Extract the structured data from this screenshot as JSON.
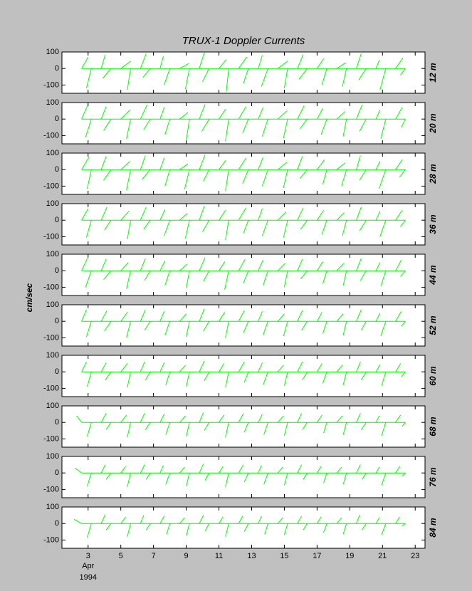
{
  "chart_data": [
    {
      "type": "stick",
      "title": "TRUX-1  Doppler Currents",
      "label": "12 m",
      "color": "#00ff00",
      "xlim": [
        1.4,
        23.6
      ],
      "ylim": [
        -150,
        100
      ],
      "yticks": [
        -100,
        0,
        100
      ],
      "xticks": [
        3,
        5,
        7,
        9,
        11,
        13,
        15,
        17,
        19,
        21,
        23
      ],
      "x": [
        2.6,
        3.2,
        3.8,
        4.4,
        5,
        5.6,
        6.2,
        6.8,
        7.4,
        8,
        8.6,
        9.2,
        9.8,
        10.4,
        11,
        11.6,
        12.2,
        12.8,
        13.4,
        14,
        14.6,
        15.2,
        15.8,
        16.4,
        17,
        17.6,
        18.2,
        18.8,
        19.4,
        20,
        20.6,
        21.2,
        21.8,
        22.4
      ],
      "u": [
        40,
        -30,
        25,
        -50,
        60,
        -20,
        35,
        -45,
        20,
        -35,
        55,
        -25,
        30,
        -40,
        45,
        -15,
        50,
        -30,
        25,
        -40,
        60,
        -20,
        35,
        -50,
        40,
        -30,
        55,
        -25,
        30,
        -45,
        20,
        -35,
        45,
        -30
      ],
      "v": [
        70,
        -120,
        85,
        -60,
        45,
        -130,
        90,
        -55,
        75,
        -100,
        30,
        -125,
        95,
        -80,
        55,
        -140,
        70,
        -90,
        80,
        -110,
        45,
        -120,
        85,
        -65,
        60,
        -100,
        35,
        -110,
        90,
        -70,
        50,
        -130,
        65,
        -40
      ]
    },
    {
      "type": "stick",
      "label": "20 m",
      "color": "#00ff00",
      "xlim": [
        1.4,
        23.6
      ],
      "ylim": [
        -150,
        100
      ],
      "yticks": [
        -100,
        0,
        100
      ],
      "xticks": [
        3,
        5,
        7,
        9,
        11,
        13,
        15,
        17,
        19,
        21,
        23
      ],
      "x": [
        2.6,
        3.2,
        3.8,
        4.4,
        5,
        5.6,
        6.2,
        6.8,
        7.4,
        8,
        8.6,
        9.2,
        9.8,
        10.4,
        11,
        11.6,
        12.2,
        12.8,
        13.4,
        14,
        14.6,
        15.2,
        15.8,
        16.4,
        17,
        17.6,
        18.2,
        18.8,
        19.4,
        20,
        20.6,
        21.2,
        21.8,
        22.4
      ],
      "u": [
        35,
        -35,
        30,
        -45,
        55,
        -25,
        40,
        -40,
        25,
        -30,
        50,
        -20,
        35,
        -45,
        40,
        -20,
        45,
        -35,
        30,
        -35,
        55,
        -25,
        40,
        -45,
        35,
        -35,
        50,
        -20,
        35,
        -40,
        25,
        -30,
        40,
        -25
      ],
      "v": [
        80,
        -110,
        75,
        -70,
        55,
        -120,
        85,
        -65,
        70,
        -95,
        40,
        -130,
        90,
        -75,
        60,
        -135,
        75,
        -85,
        70,
        -105,
        50,
        -115,
        80,
        -60,
        65,
        -95,
        45,
        -105,
        85,
        -75,
        55,
        -120,
        70,
        -50
      ]
    },
    {
      "type": "stick",
      "label": "28 m",
      "color": "#00ff00",
      "xlim": [
        1.4,
        23.6
      ],
      "ylim": [
        -150,
        100
      ],
      "yticks": [
        -100,
        0,
        100
      ],
      "xticks": [
        3,
        5,
        7,
        9,
        11,
        13,
        15,
        17,
        19,
        21,
        23
      ],
      "x": [
        2.6,
        3.2,
        3.8,
        4.4,
        5,
        5.6,
        6.2,
        6.8,
        7.4,
        8,
        8.6,
        9.2,
        9.8,
        10.4,
        11,
        11.6,
        12.2,
        12.8,
        13.4,
        14,
        14.6,
        15.2,
        15.8,
        16.4,
        17,
        17.6,
        18.2,
        18.8,
        19.4,
        20,
        20.6,
        21.2,
        21.8,
        22.4
      ],
      "u": [
        45,
        -25,
        30,
        -45,
        55,
        -25,
        30,
        -50,
        25,
        -30,
        50,
        -30,
        35,
        -35,
        40,
        -20,
        45,
        -35,
        30,
        -35,
        55,
        -25,
        30,
        -45,
        45,
        -25,
        50,
        -30,
        25,
        -40,
        25,
        -40,
        40,
        -35
      ],
      "v": [
        75,
        -115,
        80,
        -65,
        50,
        -125,
        85,
        -60,
        70,
        -100,
        35,
        -120,
        90,
        -70,
        55,
        -130,
        70,
        -85,
        75,
        -100,
        45,
        -110,
        80,
        -55,
        60,
        -90,
        40,
        -100,
        85,
        -65,
        50,
        -115,
        60,
        -45
      ]
    },
    {
      "type": "stick",
      "label": "36 m",
      "color": "#00ff00",
      "xlim": [
        1.4,
        23.6
      ],
      "ylim": [
        -150,
        100
      ],
      "yticks": [
        -100,
        0,
        100
      ],
      "xticks": [
        3,
        5,
        7,
        9,
        11,
        13,
        15,
        17,
        19,
        21,
        23
      ],
      "x": [
        2.6,
        3.2,
        3.8,
        4.4,
        5,
        5.6,
        6.2,
        6.8,
        7.4,
        8,
        8.6,
        9.2,
        9.8,
        10.4,
        11,
        11.6,
        12.2,
        12.8,
        13.4,
        14,
        14.6,
        15.2,
        15.8,
        16.4,
        17,
        17.6,
        18.2,
        18.8,
        19.4,
        20,
        20.6,
        21.2,
        21.8,
        22.4
      ],
      "u": [
        40,
        -30,
        35,
        -40,
        50,
        -20,
        35,
        -40,
        30,
        -35,
        45,
        -25,
        30,
        -40,
        40,
        -20,
        45,
        -30,
        25,
        -35,
        50,
        -25,
        35,
        -40,
        40,
        -30,
        45,
        -25,
        30,
        -40,
        25,
        -35,
        40,
        -30
      ],
      "v": [
        70,
        -105,
        80,
        -60,
        55,
        -115,
        80,
        -55,
        65,
        -95,
        40,
        -110,
        85,
        -70,
        60,
        -120,
        75,
        -80,
        70,
        -95,
        50,
        -105,
        75,
        -55,
        60,
        -85,
        45,
        -95,
        80,
        -65,
        55,
        -100,
        60,
        -40
      ]
    },
    {
      "type": "stick",
      "label": "44 m",
      "color": "#00ff00",
      "xlim": [
        1.4,
        23.6
      ],
      "ylim": [
        -150,
        100
      ],
      "yticks": [
        -100,
        0,
        100
      ],
      "xticks": [
        3,
        5,
        7,
        9,
        11,
        13,
        15,
        17,
        19,
        21,
        23
      ],
      "x": [
        2.6,
        3.2,
        3.8,
        4.4,
        5,
        5.6,
        6.2,
        6.8,
        7.4,
        8,
        8.6,
        9.2,
        9.8,
        10.4,
        11,
        11.6,
        12.2,
        12.8,
        13.4,
        14,
        14.6,
        15.2,
        15.8,
        16.4,
        17,
        17.6,
        18.2,
        18.8,
        19.4,
        20,
        20.6,
        21.2,
        21.8,
        22.4
      ],
      "u": [
        35,
        -35,
        30,
        -45,
        45,
        -25,
        30,
        -35,
        30,
        -30,
        45,
        -20,
        35,
        -35,
        35,
        -25,
        40,
        -30,
        30,
        -30,
        45,
        -20,
        30,
        -40,
        35,
        -25,
        45,
        -20,
        30,
        -35,
        25,
        -30,
        35,
        -30
      ],
      "v": [
        75,
        -100,
        70,
        -55,
        50,
        -110,
        75,
        -60,
        60,
        -90,
        40,
        -105,
        80,
        -65,
        55,
        -115,
        70,
        -75,
        65,
        -90,
        45,
        -100,
        70,
        -50,
        55,
        -80,
        45,
        -90,
        75,
        -60,
        50,
        -95,
        65,
        -35
      ]
    },
    {
      "type": "stick",
      "label": "52 m",
      "ylabel": "cm/sec",
      "color": "#00ff00",
      "xlim": [
        1.4,
        23.6
      ],
      "ylim": [
        -150,
        100
      ],
      "yticks": [
        -100,
        0,
        100
      ],
      "xticks": [
        3,
        5,
        7,
        9,
        11,
        13,
        15,
        17,
        19,
        21,
        23
      ],
      "x": [
        2.6,
        3.2,
        3.8,
        4.4,
        5,
        5.6,
        6.2,
        6.8,
        7.4,
        8,
        8.6,
        9.2,
        9.8,
        10.4,
        11,
        11.6,
        12.2,
        12.8,
        13.4,
        14,
        14.6,
        15.2,
        15.8,
        16.4,
        17,
        17.6,
        18.2,
        18.8,
        19.4,
        20,
        20.6,
        21.2,
        21.8,
        22.4
      ],
      "u": [
        30,
        -30,
        35,
        -40,
        40,
        -25,
        30,
        -35,
        25,
        -30,
        40,
        -20,
        30,
        -35,
        35,
        -20,
        35,
        -30,
        25,
        -30,
        40,
        -25,
        30,
        -35,
        30,
        -25,
        40,
        -20,
        30,
        -30,
        25,
        -30,
        35,
        -25
      ],
      "v": [
        70,
        -95,
        65,
        -60,
        55,
        -100,
        70,
        -55,
        60,
        -85,
        45,
        -95,
        75,
        -60,
        55,
        -100,
        65,
        -70,
        60,
        -85,
        45,
        -90,
        65,
        -55,
        55,
        -75,
        45,
        -85,
        70,
        -55,
        50,
        -90,
        60,
        -30
      ]
    },
    {
      "type": "stick",
      "label": "60 m",
      "color": "#00ff00",
      "xlim": [
        1.4,
        23.6
      ],
      "ylim": [
        -150,
        100
      ],
      "yticks": [
        -100,
        0,
        100
      ],
      "xticks": [
        3,
        5,
        7,
        9,
        11,
        13,
        15,
        17,
        19,
        21,
        23
      ],
      "x": [
        2.6,
        3.2,
        3.8,
        4.4,
        5,
        5.6,
        6.2,
        6.8,
        7.4,
        8,
        8.6,
        9.2,
        9.8,
        10.4,
        11,
        11.6,
        12.2,
        12.8,
        13.4,
        14,
        14.6,
        15.2,
        15.8,
        16.4,
        17,
        17.6,
        18.2,
        18.8,
        19.4,
        20,
        20.6,
        21.2,
        21.8,
        22.4
      ],
      "u": [
        30,
        -25,
        30,
        -35,
        40,
        -20,
        25,
        -30,
        25,
        -25,
        35,
        -20,
        30,
        -30,
        30,
        -20,
        35,
        -25,
        25,
        -30,
        35,
        -20,
        30,
        -30,
        30,
        -25,
        35,
        -20,
        25,
        -30,
        25,
        -25,
        30,
        -25
      ],
      "v": [
        60,
        -90,
        55,
        -50,
        50,
        -95,
        60,
        -50,
        55,
        -80,
        40,
        -90,
        65,
        -55,
        50,
        -95,
        60,
        -65,
        55,
        -80,
        40,
        -85,
        60,
        -50,
        50,
        -70,
        40,
        -80,
        60,
        -50,
        45,
        -85,
        50,
        -30
      ]
    },
    {
      "type": "stick",
      "label": "68 m",
      "color": "#00ff00",
      "xlim": [
        1.4,
        23.6
      ],
      "ylim": [
        -150,
        100
      ],
      "yticks": [
        -100,
        0,
        100
      ],
      "xticks": [
        3,
        5,
        7,
        9,
        11,
        13,
        15,
        17,
        19,
        21,
        23
      ],
      "x": [
        2.6,
        3.2,
        3.8,
        4.4,
        5,
        5.6,
        6.2,
        6.8,
        7.4,
        8,
        8.6,
        9.2,
        9.8,
        10.4,
        11,
        11.6,
        12.2,
        12.8,
        13.4,
        14,
        14.6,
        15.2,
        15.8,
        16.4,
        17,
        17.6,
        18.2,
        18.8,
        19.4,
        20,
        20.6,
        21.2,
        21.8,
        22.4
      ],
      "u": [
        -30,
        -25,
        30,
        -30,
        35,
        -20,
        25,
        -30,
        25,
        -25,
        35,
        -20,
        25,
        -30,
        30,
        -20,
        30,
        -25,
        25,
        -25,
        35,
        -20,
        25,
        -30,
        30,
        -20,
        35,
        -20,
        25,
        -30,
        20,
        -25,
        30,
        -20
      ],
      "v": [
        40,
        -85,
        55,
        -45,
        45,
        -90,
        55,
        -45,
        50,
        -75,
        40,
        -85,
        60,
        -50,
        45,
        -90,
        55,
        -60,
        50,
        -75,
        40,
        -80,
        55,
        -45,
        45,
        -65,
        40,
        -75,
        55,
        -45,
        40,
        -80,
        45,
        -25
      ]
    },
    {
      "type": "stick",
      "label": "76 m",
      "color": "#00ff00",
      "xlim": [
        1.4,
        23.6
      ],
      "ylim": [
        -150,
        100
      ],
      "yticks": [
        -100,
        0,
        100
      ],
      "xticks": [
        3,
        5,
        7,
        9,
        11,
        13,
        15,
        17,
        19,
        21,
        23
      ],
      "x": [
        2.6,
        3.2,
        3.8,
        4.4,
        5,
        5.6,
        6.2,
        6.8,
        7.4,
        8,
        8.6,
        9.2,
        9.8,
        10.4,
        11,
        11.6,
        12.2,
        12.8,
        13.4,
        14,
        14.6,
        15.2,
        15.8,
        16.4,
        17,
        17.6,
        18.2,
        18.8,
        19.4,
        20,
        20.6,
        21.2,
        21.8,
        22.4
      ],
      "u": [
        -40,
        -25,
        25,
        -30,
        30,
        -20,
        25,
        -25,
        20,
        -25,
        30,
        -20,
        25,
        -25,
        25,
        -20,
        30,
        -25,
        20,
        -25,
        30,
        -20,
        25,
        -25,
        25,
        -20,
        30,
        -20,
        25,
        -25,
        20,
        -25,
        25,
        -20
      ],
      "v": [
        30,
        -80,
        50,
        -40,
        40,
        -85,
        50,
        -40,
        45,
        -70,
        35,
        -80,
        55,
        -45,
        40,
        -85,
        50,
        -55,
        45,
        -70,
        35,
        -75,
        50,
        -40,
        40,
        -60,
        35,
        -70,
        50,
        -40,
        35,
        -75,
        40,
        -20
      ]
    },
    {
      "type": "stick",
      "label": "84 m",
      "xticklabels": true,
      "x_month": "Apr",
      "x_year": "1994",
      "color": "#00ff00",
      "xlim": [
        1.4,
        23.6
      ],
      "ylim": [
        -150,
        100
      ],
      "yticks": [
        -100,
        0,
        100
      ],
      "xticks": [
        3,
        5,
        7,
        9,
        11,
        13,
        15,
        17,
        19,
        21,
        23
      ],
      "x": [
        2.6,
        3.2,
        3.8,
        4.4,
        5,
        5.6,
        6.2,
        6.8,
        7.4,
        8,
        8.6,
        9.2,
        9.8,
        10.4,
        11,
        11.6,
        12.2,
        12.8,
        13.4,
        14,
        14.6,
        15.2,
        15.8,
        16.4,
        17,
        17.6,
        18.2,
        18.8,
        19.4,
        20,
        20.6,
        21.2,
        21.8,
        22.4
      ],
      "u": [
        -45,
        -25,
        25,
        -30,
        30,
        -20,
        20,
        -25,
        25,
        -20,
        30,
        -20,
        25,
        -25,
        25,
        -20,
        25,
        -25,
        20,
        -20,
        30,
        -20,
        25,
        -25,
        25,
        -20,
        30,
        -20,
        20,
        -25,
        20,
        -25,
        25,
        -20
      ],
      "v": [
        25,
        -85,
        55,
        -40,
        40,
        -80,
        50,
        -40,
        45,
        -65,
        35,
        -75,
        50,
        -45,
        40,
        -80,
        45,
        -50,
        45,
        -65,
        35,
        -70,
        45,
        -40,
        40,
        -55,
        35,
        -65,
        50,
        -40,
        35,
        -70,
        40,
        -15
      ]
    }
  ]
}
